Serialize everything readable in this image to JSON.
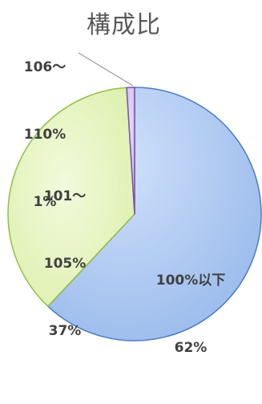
{
  "chart_data": {
    "type": "pie",
    "title": "構成比",
    "slices": [
      {
        "label_line1": "100%以下",
        "label_line2": "62%",
        "value": 62,
        "color": "#a9c7f0",
        "stroke": "#4a7cc0"
      },
      {
        "label_line1": "101～",
        "label_line2": "105%",
        "label_line3": "37%",
        "value": 37,
        "color": "#e4f5bd",
        "stroke": "#8fbf45"
      },
      {
        "label_line1": "106～",
        "label_line2": "110%",
        "label_line3": "1%",
        "value": 1,
        "color": "#d7c2ef",
        "stroke": "#7a54a8"
      }
    ]
  }
}
